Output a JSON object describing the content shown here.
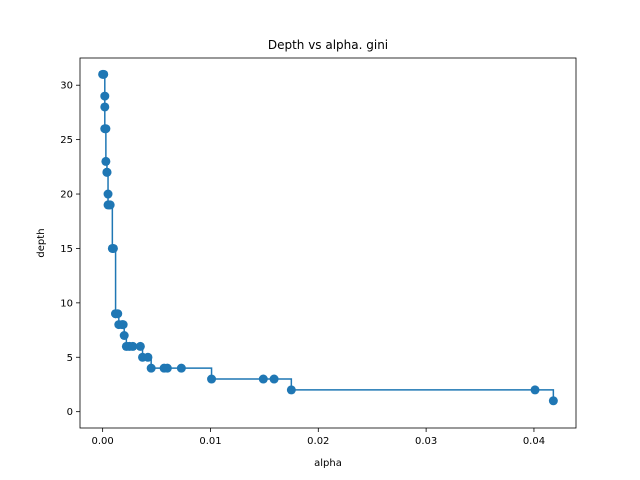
{
  "chart_data": {
    "type": "scatter",
    "title": "Depth vs alpha. gini",
    "xlabel": "alpha",
    "ylabel": "depth",
    "xlim": [
      -0.0021,
      0.0439
    ],
    "ylim": [
      -1.5,
      32.5
    ],
    "grid": false,
    "color": "#1f77b4",
    "x_ticks": [
      {
        "value": 0.0,
        "label": "0.00"
      },
      {
        "value": 0.01,
        "label": "0.01"
      },
      {
        "value": 0.02,
        "label": "0.02"
      },
      {
        "value": 0.03,
        "label": "0.03"
      },
      {
        "value": 0.04,
        "label": "0.04"
      }
    ],
    "y_ticks": [
      {
        "value": 0,
        "label": "0"
      },
      {
        "value": 5,
        "label": "5"
      },
      {
        "value": 10,
        "label": "10"
      },
      {
        "value": 15,
        "label": "15"
      },
      {
        "value": 20,
        "label": "20"
      },
      {
        "value": 25,
        "label": "25"
      },
      {
        "value": 30,
        "label": "30"
      }
    ],
    "series": [
      {
        "drawstyle": "steps-post",
        "marker": "circle",
        "x": [
          0.0,
          0.0001,
          0.0002,
          0.0002,
          0.0002,
          0.0003,
          0.0003,
          0.0004,
          0.0004,
          0.0005,
          0.0005,
          0.0006,
          0.0007,
          0.0009,
          0.001,
          0.0012,
          0.0012,
          0.0014,
          0.0015,
          0.0018,
          0.0019,
          0.002,
          0.0022,
          0.0025,
          0.0028,
          0.0035,
          0.0037,
          0.0042,
          0.0045,
          0.0057,
          0.006,
          0.0073,
          0.0101,
          0.0149,
          0.0159,
          0.0175,
          0.0401,
          0.0418
        ],
        "y": [
          31,
          31,
          29,
          28,
          26,
          26,
          23,
          22,
          22,
          20,
          19,
          19,
          19,
          15,
          15,
          9,
          9,
          9,
          8,
          8,
          8,
          7,
          6,
          6,
          6,
          6,
          5,
          5,
          4,
          4,
          4,
          4,
          3,
          3,
          3,
          2,
          2,
          1
        ]
      }
    ]
  }
}
